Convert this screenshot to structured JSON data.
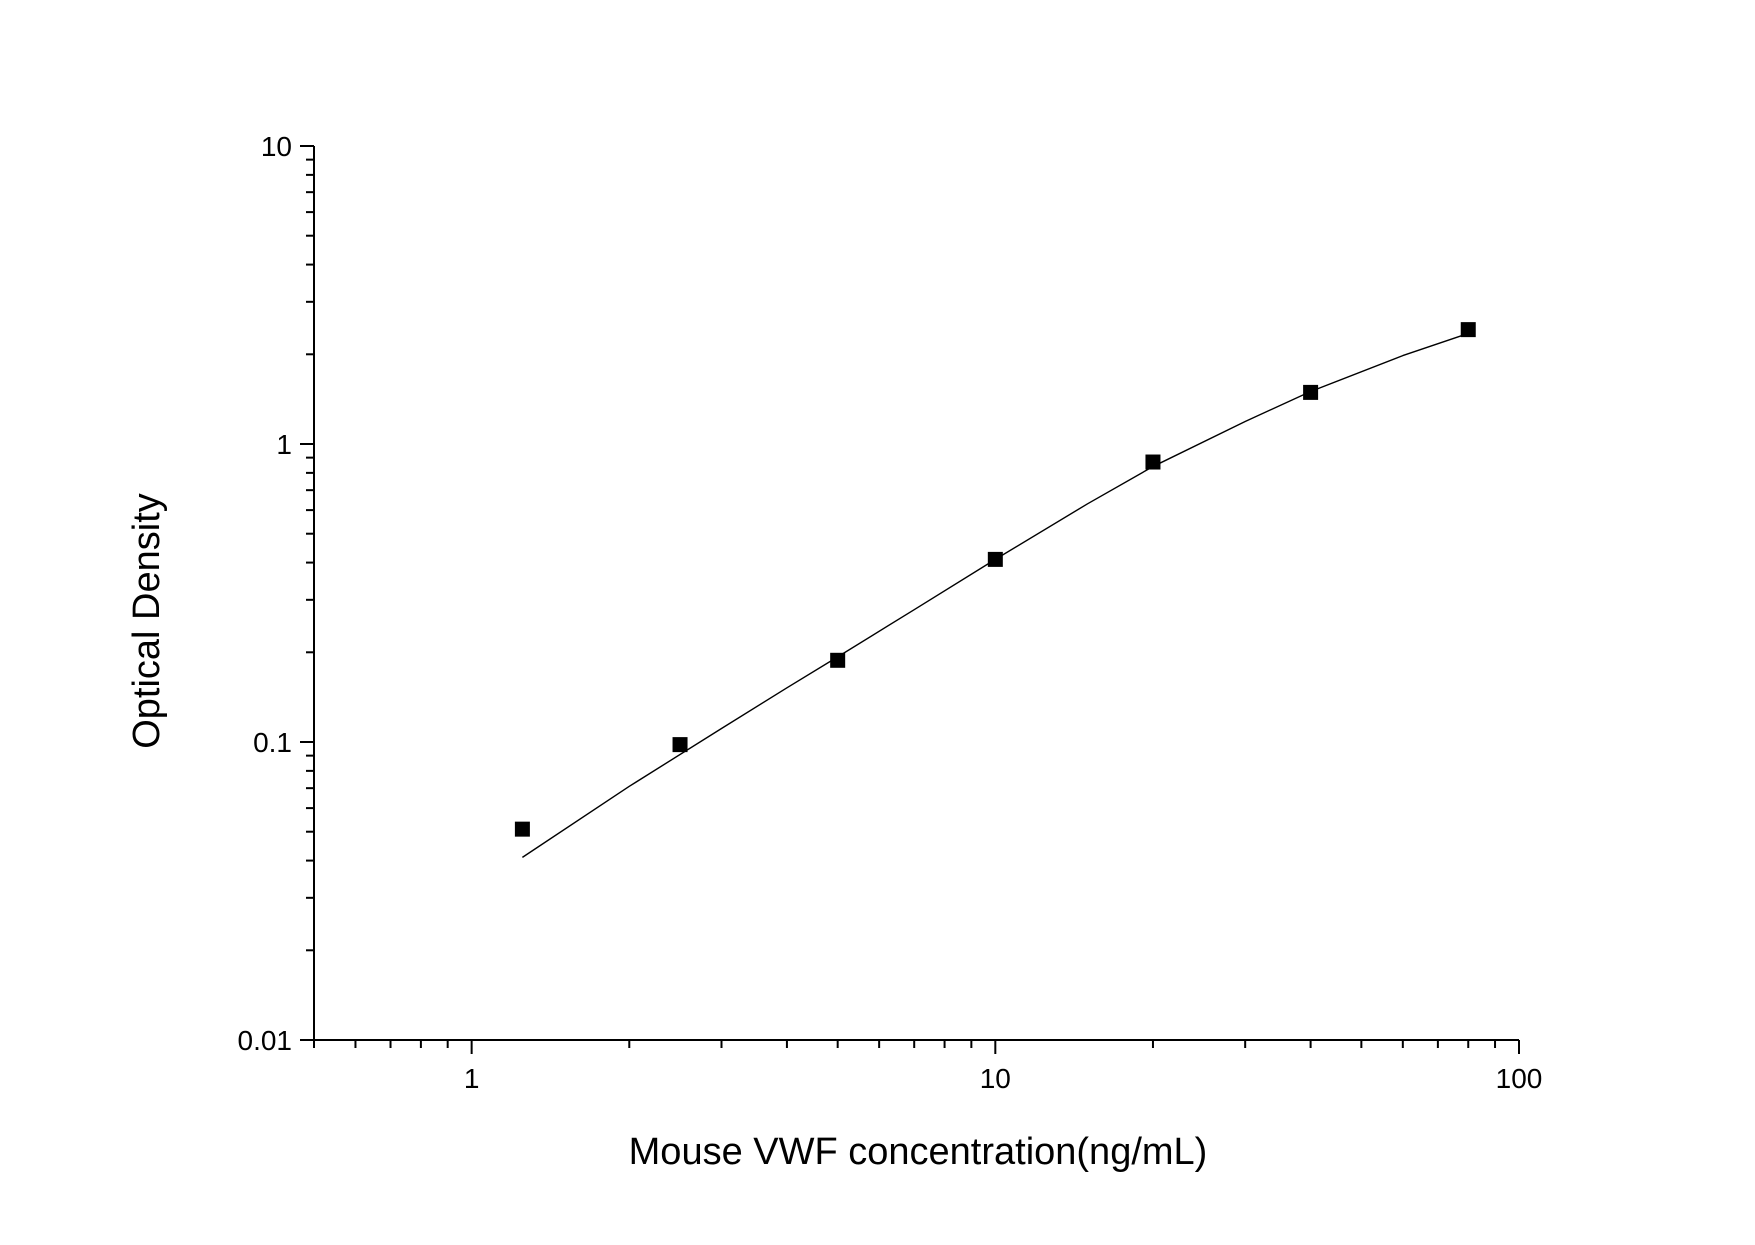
{
  "chart_data": {
    "type": "scatter",
    "title": "",
    "xlabel": "Mouse VWF concentration(ng/mL)",
    "ylabel": "Optical Density",
    "x_scale": "log",
    "y_scale": "log",
    "xlim": [
      0.5,
      100
    ],
    "ylim": [
      0.01,
      10
    ],
    "x_ticks": [
      {
        "value": 1,
        "label": "1"
      },
      {
        "value": 10,
        "label": "10"
      },
      {
        "value": 100,
        "label": "100"
      }
    ],
    "y_ticks": [
      {
        "value": 0.01,
        "label": "0.01"
      },
      {
        "value": 0.1,
        "label": "0.1"
      },
      {
        "value": 1,
        "label": "1"
      },
      {
        "value": 10,
        "label": "10"
      }
    ],
    "grid": false,
    "legend": "none",
    "series": [
      {
        "type": "scatter",
        "marker": "square",
        "color": "#000000",
        "x": [
          1.25,
          2.5,
          5,
          10,
          20,
          40,
          80
        ],
        "y": [
          0.051,
          0.098,
          0.188,
          0.41,
          0.87,
          1.49,
          2.42
        ]
      },
      {
        "type": "line",
        "color": "#000000",
        "fit_curve": true,
        "x": [
          1.25,
          2,
          3,
          4,
          5,
          7,
          10,
          15,
          20,
          30,
          40,
          60,
          80
        ],
        "y": [
          0.041,
          0.071,
          0.111,
          0.152,
          0.193,
          0.278,
          0.41,
          0.63,
          0.84,
          1.19,
          1.5,
          1.98,
          2.35
        ]
      }
    ]
  }
}
